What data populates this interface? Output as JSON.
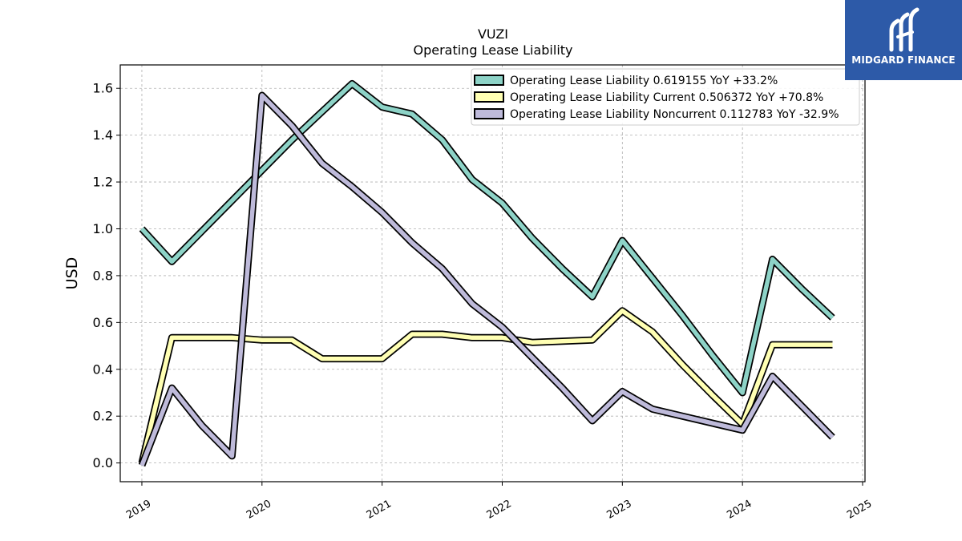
{
  "chart_data": {
    "type": "line",
    "title": "VUZI",
    "subtitle": "Operating Lease Liability",
    "ylabel": "USD",
    "xlabel": "",
    "xlim": [
      2018.82,
      2025.02
    ],
    "ylim": [
      -0.08,
      1.7
    ],
    "yticks": [
      0.0,
      0.2,
      0.4,
      0.6,
      0.8,
      1.0,
      1.2,
      1.4,
      1.6
    ],
    "ytick_labels": [
      "0.0",
      "0.2",
      "0.4",
      "0.6",
      "0.8",
      "1.0",
      "1.2",
      "1.4",
      "1.6"
    ],
    "xticks": [
      2019,
      2020,
      2021,
      2022,
      2023,
      2024,
      2025
    ],
    "xtick_labels": [
      "2019",
      "2020",
      "2021",
      "2022",
      "2023",
      "2024",
      "2025"
    ],
    "grid": true,
    "legend_position": "top-right",
    "series": [
      {
        "name": "Operating Lease Liability  0.619155 YoY +33.2%",
        "color": "#8dd3c7",
        "x": [
          2019.0,
          2019.25,
          2019.5,
          2019.75,
          2020.0,
          2020.25,
          2020.5,
          2020.75,
          2021.0,
          2021.25,
          2021.5,
          2021.75,
          2022.0,
          2022.25,
          2022.5,
          2022.75,
          2023.0,
          2023.25,
          2023.5,
          2023.75,
          2024.0,
          2024.25,
          2024.5,
          2024.75
        ],
        "y": [
          1.0,
          0.86,
          0.99,
          1.12,
          1.25,
          1.38,
          1.5,
          1.62,
          1.52,
          1.49,
          1.38,
          1.21,
          1.11,
          0.96,
          0.83,
          0.71,
          0.95,
          0.79,
          0.63,
          0.46,
          0.3,
          0.87,
          0.74,
          0.62
        ]
      },
      {
        "name": "Operating Lease Liability Current  0.506372 YoY +70.8%",
        "color": "#ffffb3",
        "x": [
          2019.0,
          2019.25,
          2019.5,
          2019.75,
          2020.0,
          2020.25,
          2020.5,
          2020.75,
          2021.0,
          2021.25,
          2021.5,
          2021.75,
          2022.0,
          2022.25,
          2022.5,
          2022.75,
          2023.0,
          2023.25,
          2023.5,
          2023.75,
          2024.0,
          2024.25,
          2024.5,
          2024.75
        ],
        "y": [
          0.0,
          0.535,
          0.535,
          0.535,
          0.525,
          0.525,
          0.445,
          0.445,
          0.445,
          0.55,
          0.55,
          0.535,
          0.535,
          0.515,
          0.52,
          0.525,
          0.65,
          0.56,
          0.42,
          0.29,
          0.165,
          0.505,
          0.505,
          0.505
        ]
      },
      {
        "name": "Operating Lease Liability Noncurrent  0.112783 YoY -32.9%",
        "color": "#bebada",
        "x": [
          2019.0,
          2019.25,
          2019.5,
          2019.75,
          2020.0,
          2020.25,
          2020.5,
          2020.75,
          2021.0,
          2021.25,
          2021.5,
          2021.75,
          2022.0,
          2022.25,
          2022.5,
          2022.75,
          2023.0,
          2023.25,
          2023.5,
          2023.75,
          2024.0,
          2024.25,
          2024.5,
          2024.75
        ],
        "y": [
          -0.01,
          0.32,
          0.16,
          0.03,
          1.57,
          1.44,
          1.28,
          1.18,
          1.07,
          0.94,
          0.83,
          0.68,
          0.58,
          0.45,
          0.32,
          0.18,
          0.305,
          0.23,
          0.2,
          0.17,
          0.14,
          0.37,
          0.24,
          0.11
        ]
      }
    ]
  },
  "logo": {
    "text": "MIDGARD FINANCE",
    "background": "#2d5aa8",
    "icon": "midgard-finance-mark"
  }
}
